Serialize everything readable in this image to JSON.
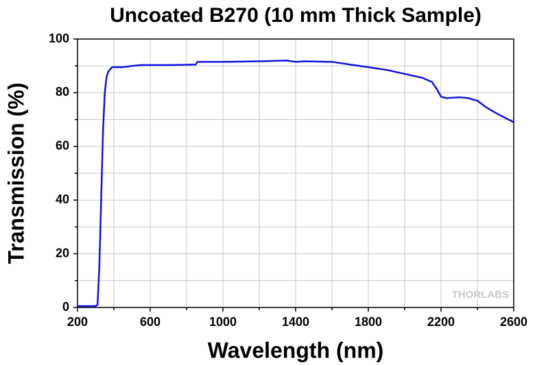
{
  "chart_data": {
    "type": "line",
    "title": "Uncoated B270 (10 mm Thick Sample)",
    "x_label": "Wavelength (nm)",
    "y_label": "Transmission (%)",
    "watermark": "THORLABS",
    "xlim": [
      200,
      2600
    ],
    "xticks": [
      200,
      600,
      1000,
      1400,
      1800,
      2200,
      2600
    ],
    "xminor": [
      400,
      800,
      1200,
      1600,
      2000,
      2400
    ],
    "ylim": [
      0,
      100
    ],
    "yticks": [
      0,
      20,
      40,
      60,
      80,
      100
    ],
    "yminor": [
      10,
      30,
      50,
      70,
      90
    ],
    "grid": true,
    "series": [
      {
        "color": "#1010e0",
        "x": [
          200,
          300,
          310,
          320,
          330,
          340,
          350,
          360,
          370,
          390,
          450,
          500,
          550,
          700,
          850,
          860,
          1000,
          1200,
          1350,
          1400,
          1450,
          1600,
          1700,
          1800,
          1900,
          2000,
          2100,
          2150,
          2180,
          2200,
          2230,
          2300,
          2350,
          2400,
          2450,
          2500,
          2600
        ],
        "values": [
          0.5,
          0.5,
          1,
          15,
          40,
          65,
          80,
          86,
          88,
          89.5,
          89.5,
          90,
          90.3,
          90.3,
          90.5,
          91.5,
          91.5,
          91.7,
          92,
          91.5,
          91.7,
          91.5,
          90.5,
          89.5,
          88.5,
          87,
          85.5,
          84,
          81,
          78.5,
          78,
          78.3,
          78,
          77,
          74.5,
          72.5,
          69
        ]
      }
    ]
  }
}
